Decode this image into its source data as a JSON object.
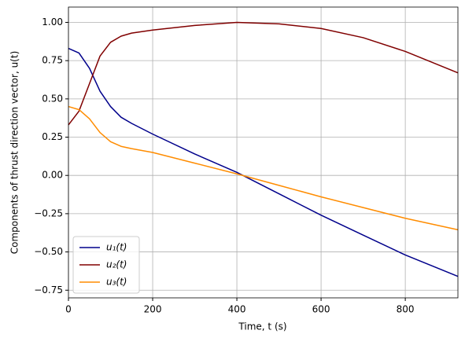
{
  "chart_data": {
    "type": "line",
    "xlabel": "Time, t (s)",
    "ylabel": "Components of thrust direction vector, u(t)",
    "x": [
      0,
      25,
      50,
      75,
      100,
      125,
      150,
      200,
      300,
      400,
      500,
      600,
      700,
      800,
      925
    ],
    "series": [
      {
        "name": "u₁(t)",
        "color": "#00008b",
        "values": [
          0.83,
          0.8,
          0.7,
          0.55,
          0.45,
          0.38,
          0.34,
          0.27,
          0.14,
          0.02,
          -0.12,
          -0.26,
          -0.39,
          -0.52,
          -0.66
        ]
      },
      {
        "name": "u₂(t)",
        "color": "#800000",
        "values": [
          0.33,
          0.42,
          0.6,
          0.78,
          0.87,
          0.91,
          0.93,
          0.95,
          0.98,
          1.0,
          0.99,
          0.96,
          0.9,
          0.81,
          0.67
        ]
      },
      {
        "name": "u₃(t)",
        "color": "#ff8c00",
        "values": [
          0.45,
          0.43,
          0.37,
          0.28,
          0.22,
          0.19,
          0.175,
          0.15,
          0.08,
          0.01,
          -0.065,
          -0.14,
          -0.21,
          -0.28,
          -0.355
        ]
      }
    ],
    "xlim": [
      0,
      925
    ],
    "ylim": [
      -0.8,
      1.1
    ],
    "xticks": [
      0,
      200,
      400,
      600,
      800
    ],
    "yticks": [
      {
        "value": 1.0,
        "label": "1.00"
      },
      {
        "value": 0.75,
        "label": "0.75"
      },
      {
        "value": 0.5,
        "label": "0.50"
      },
      {
        "value": 0.25,
        "label": "0.25"
      },
      {
        "value": 0,
        "label": "0.00"
      },
      {
        "value": -0.25,
        "label": "−0.25"
      },
      {
        "value": -0.5,
        "label": "−0.50"
      },
      {
        "value": -0.75,
        "label": "−0.75"
      }
    ],
    "grid": true,
    "legend": "lower left"
  }
}
